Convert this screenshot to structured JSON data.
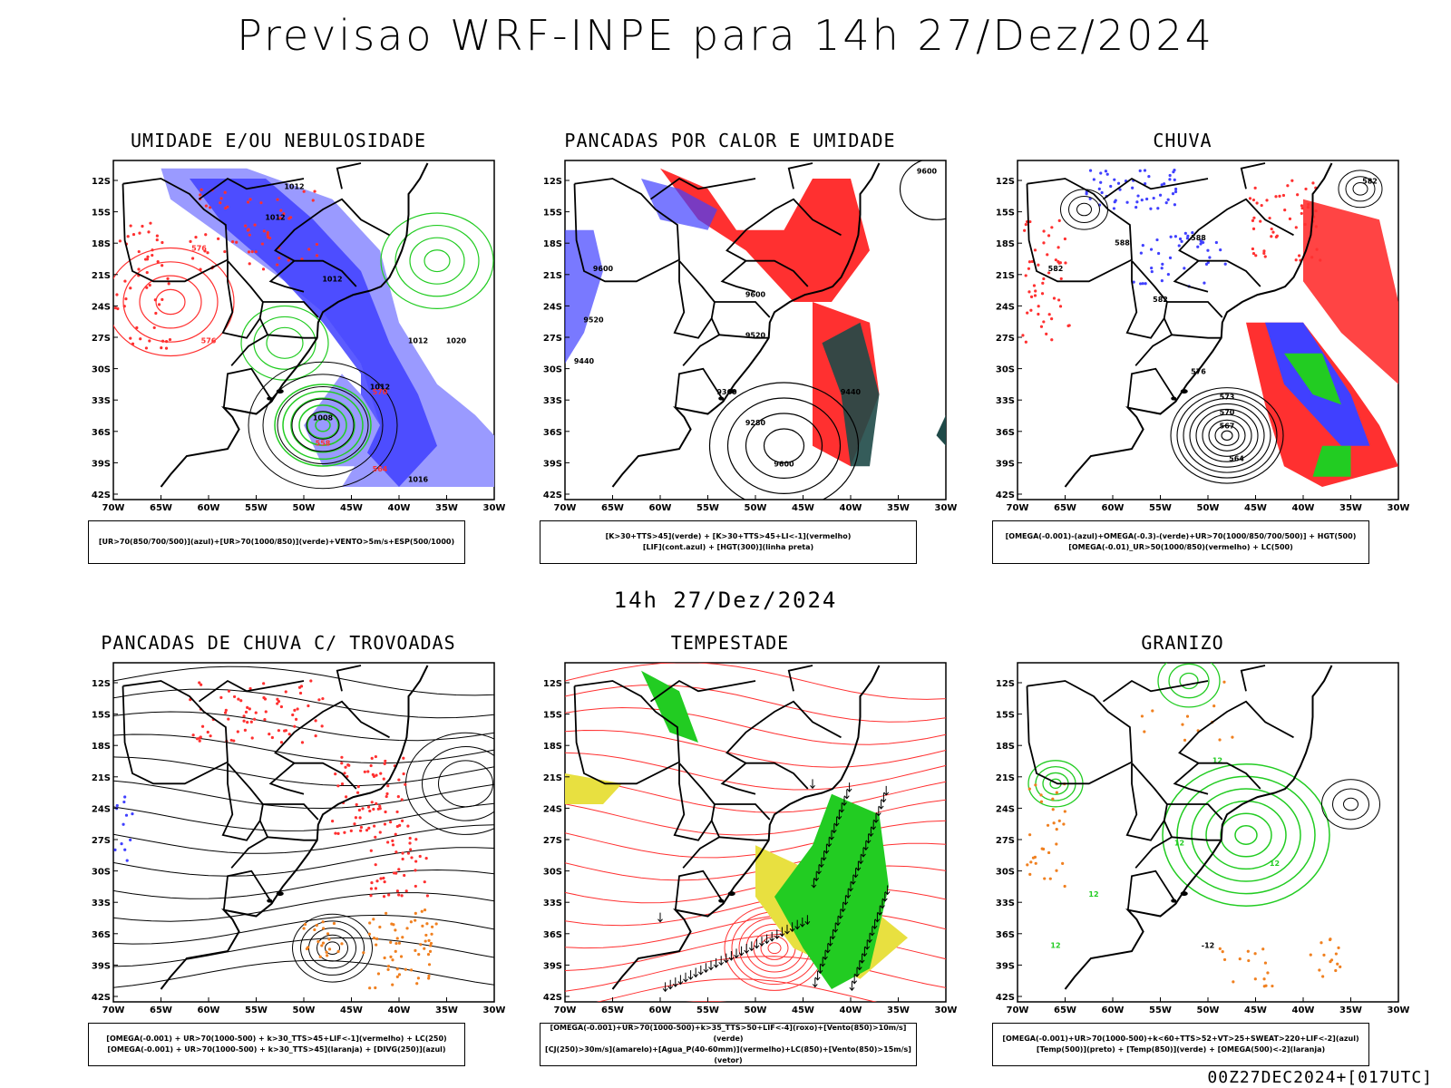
{
  "page": {
    "title": "Previsao WRF-INPE  para 14h 27/Dez/2024",
    "mid_time": "14h 27/Dez/2024",
    "run_info": "00Z27DEC2024+[017UTC]"
  },
  "colors": {
    "blue": "#4040ff",
    "light_blue": "#9a9aff",
    "green": "#22cc22",
    "red": "#ff3030",
    "dark_teal": "#1f4a48",
    "yellow": "#e8e040",
    "orange": "#f08020",
    "black": "#000000"
  },
  "axes": {
    "lon_labels": [
      "70W",
      "65W",
      "60W",
      "55W",
      "50W",
      "45W",
      "40W",
      "35W",
      "30W"
    ],
    "lat_labels": [
      "12S",
      "15S",
      "18S",
      "21S",
      "24S",
      "27S",
      "30S",
      "33S",
      "36S",
      "39S",
      "42S"
    ]
  },
  "chart_data": [
    {
      "type": "map",
      "title": "UMIDADE E/OU NEBULOSIDADE",
      "legend": [
        "[UR>70(850/700/500)](azul)+[UR>70(1000/850)](verde)+VENTO>5m/s+ESP(500/1000)"
      ],
      "contour_labels": [
        "1012",
        "1012",
        "1012",
        "1012",
        "1008",
        "1016",
        "1020",
        "1012",
        "576",
        "576",
        "570",
        "564",
        "558"
      ],
      "xlim": [
        -70,
        -30
      ],
      "ylim": [
        -42,
        -10
      ]
    },
    {
      "type": "map",
      "title": "PANCADAS POR CALOR E UMIDADE",
      "legend": [
        "[K>30+TTS>45](verde) + [K>30+TTS>45+LI<-1](vermelho)",
        "[LIF](cont.azul) + [HGT(300)](linha preta)"
      ],
      "contour_labels": [
        "9600",
        "9600",
        "9600",
        "9520",
        "9520",
        "9440",
        "9360",
        "9280",
        "9600",
        "9440"
      ],
      "xlim": [
        -70,
        -30
      ],
      "ylim": [
        -42,
        -10
      ]
    },
    {
      "type": "map",
      "title": "CHUVA",
      "legend": [
        "[OMEGA(-0.001)-(azul)+OMEGA(-0.3)-(verde)+UR>70(1000/850/700/500)] + HGT(500)",
        "[OMEGA(-0.01)_UR>50(1000/850)(vermelho) + LC(500)"
      ],
      "contour_labels": [
        "582",
        "588",
        "588",
        "582",
        "582",
        "576",
        "573",
        "570",
        "567",
        "564"
      ],
      "xlim": [
        -70,
        -30
      ],
      "ylim": [
        -42,
        -10
      ]
    },
    {
      "type": "map",
      "title": "PANCADAS DE CHUVA C/ TROVOADAS",
      "legend": [
        "[OMEGA(-0.001) + UR>70(1000-500) + k>30_TTS>45+LIF<-1](vermelho) + LC(250)",
        "[OMEGA(-0.001) + UR>70(1000-500) + k>30_TTS>45](laranja) + [DIVG(250)](azul)"
      ],
      "contour_labels": [],
      "xlim": [
        -70,
        -30
      ],
      "ylim": [
        -42,
        -10
      ]
    },
    {
      "type": "map",
      "title": "TEMPESTADE",
      "legend": [
        "[OMEGA(-0.001)+UR>70(1000-500)+k>35_TTS>50+LIF<-4](roxo)+[Vento(850)>10m/s](verde)",
        "[CJ(250)>30m/s](amarelo)+[Agua_P(40-60mm)](vermelho)+LC(850)+[Vento(850)>15m/s](vetor)"
      ],
      "contour_labels": [],
      "xlim": [
        -70,
        -30
      ],
      "ylim": [
        -42,
        -10
      ]
    },
    {
      "type": "map",
      "title": "GRANIZO",
      "legend": [
        "[OMEGA(-0.001)+UR>70(1000-500)+k<60+TTS>52+VT>25+SWEAT>220+LIF<-2](azul)",
        "[Temp(500)](preto) + [Temp(850)](verde) + [OMEGA(500)<-2](laranja)"
      ],
      "contour_labels": [
        "12",
        "12",
        "12",
        "12",
        "12",
        "-12"
      ],
      "xlim": [
        -70,
        -30
      ],
      "ylim": [
        -42,
        -10
      ]
    }
  ]
}
